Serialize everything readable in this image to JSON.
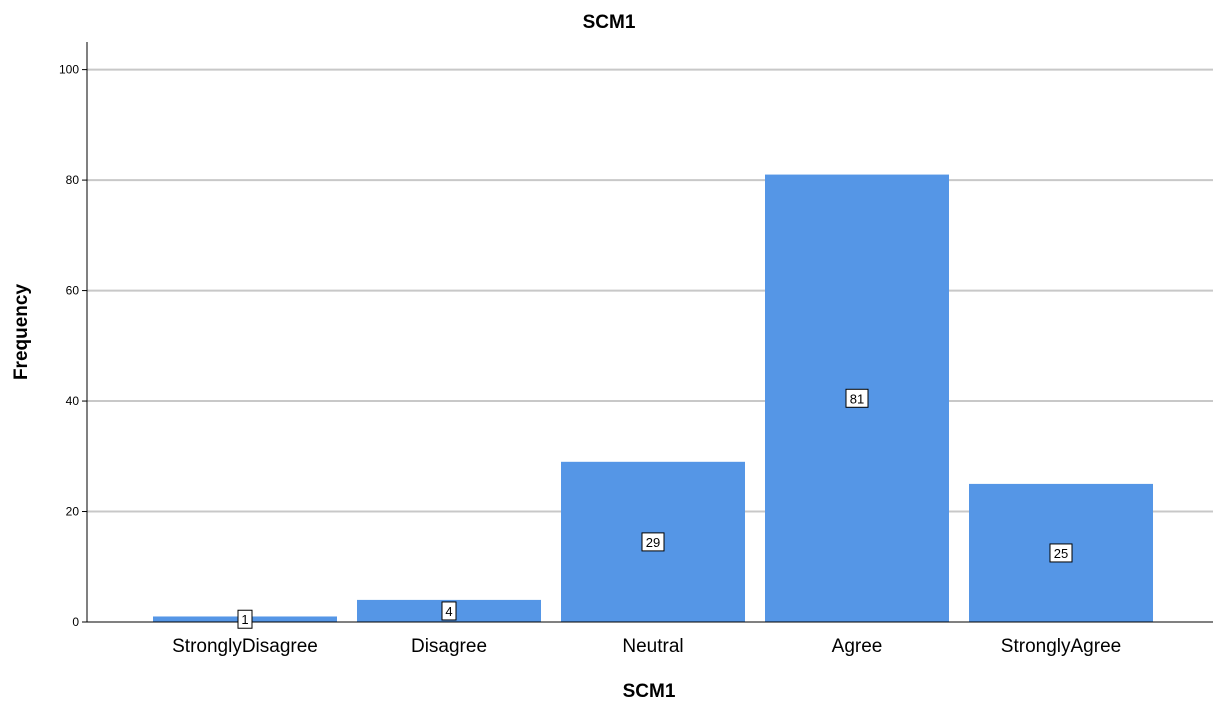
{
  "chart_data": {
    "type": "bar",
    "title": "SCM1",
    "xlabel": "SCM1",
    "ylabel": "Frequency",
    "categories": [
      "StronglyDisagree",
      "Disagree",
      "Neutral",
      "Agree",
      "StronglyAgree"
    ],
    "values": [
      1,
      4,
      29,
      81,
      25
    ],
    "data_labels": [
      "1",
      "4",
      "29",
      "81",
      "25"
    ],
    "yticks": [
      0,
      20,
      40,
      60,
      80,
      100
    ],
    "ylim": [
      0,
      105
    ],
    "grid": true,
    "bar_color": "#5596e6",
    "grid_color": "#c8c8c8"
  }
}
